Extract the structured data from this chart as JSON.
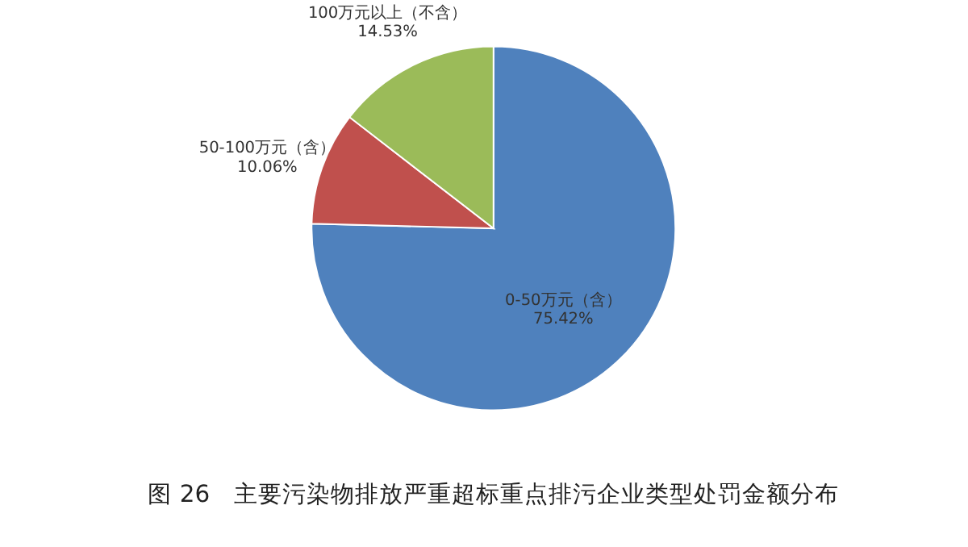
{
  "chart_data": {
    "type": "pie",
    "title": "图 26　主要污染物排放严重超标重点排污企业类型处罚金额分布",
    "categories": [
      "0-50万元（含）",
      "50-100万元（含）",
      "100万元以上（不含）"
    ],
    "values": [
      75.42,
      10.06,
      14.53
    ],
    "value_labels": [
      "75.42%",
      "10.06%",
      "14.53%"
    ],
    "colors": [
      "#4f81bd",
      "#c0504d",
      "#9bbb59"
    ]
  }
}
